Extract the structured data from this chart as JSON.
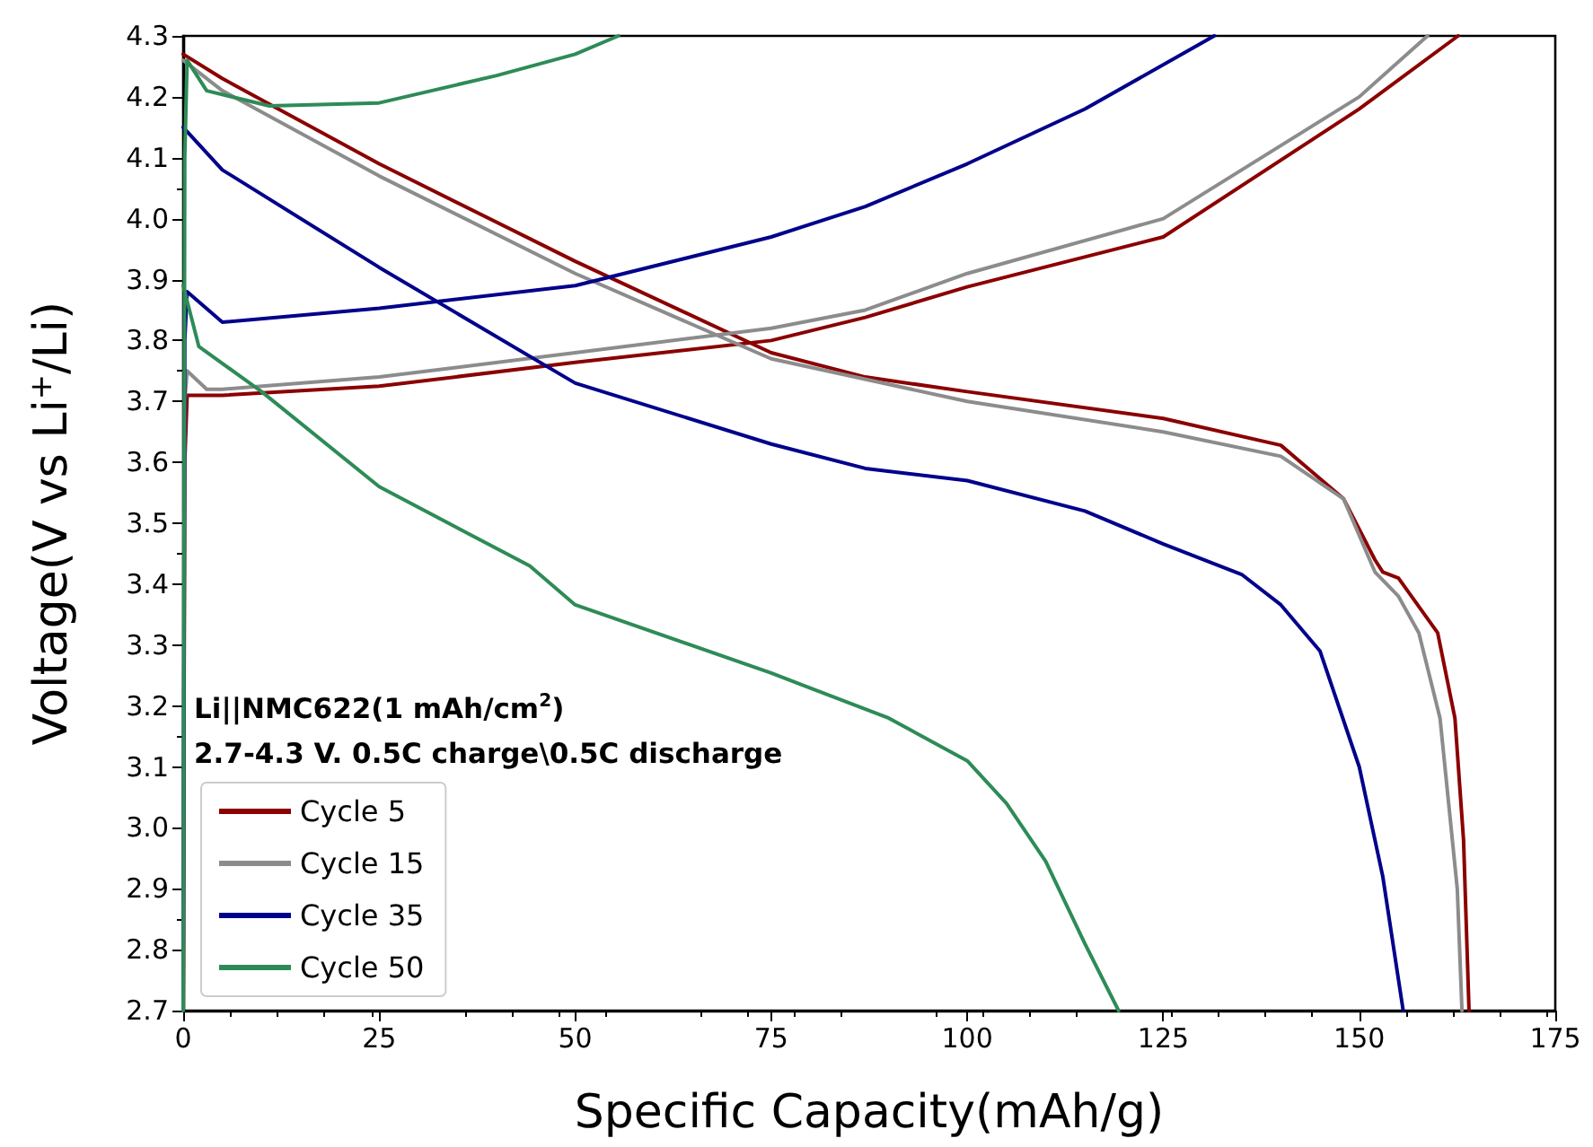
{
  "chart_data": {
    "type": "line",
    "xlabel": "Specific Capacity(mAh/g)",
    "ylabel": "Voltage(V vs Li$^{+}$/Li)",
    "xlim": [
      0,
      175
    ],
    "xticks": [
      0,
      25,
      50,
      75,
      100,
      125,
      150,
      175
    ],
    "ylim": [
      2.7,
      4.3
    ],
    "yticks": [
      2.7,
      2.8,
      2.9,
      {
        "value": 3,
        "label": "3.0"
      },
      3.1,
      3.2,
      3.3,
      3.4,
      3.5,
      3.6,
      3.7,
      3.8,
      3.9,
      {
        "value": 4,
        "label": "4.0"
      },
      4.1,
      4.2,
      4.3
    ],
    "grid": false,
    "legend": "bottom left",
    "marker": "none",
    "line_style": "solid",
    "annotations": [
      "Li||NMC622(1 mAh/cm$^{2}$)",
      "2.7-4.3 V. 0.5C charge\\0.5C discharge"
    ],
    "series": [
      {
        "name": "Cycle 5",
        "color": "#8b0000",
        "x": [
          0,
          0.2,
          0.5,
          2,
          5,
          25,
          50,
          75,
          87,
          100,
          125,
          150,
          162.6
        ],
        "values": [
          2.7,
          3.6,
          3.71,
          3.71,
          3.71,
          3.725,
          3.764,
          3.8,
          3.838,
          3.888,
          3.97,
          4.18,
          4.3
        ]
      },
      {
        "color": "#8b0000",
        "x": [
          0,
          5,
          25,
          50,
          75,
          87,
          100,
          125,
          140,
          148,
          152,
          153,
          155,
          160,
          162.2,
          163.3,
          164
        ],
        "values": [
          4.27,
          4.23,
          4.09,
          3.93,
          3.78,
          3.74,
          3.716,
          3.672,
          3.628,
          3.54,
          3.44,
          3.42,
          3.41,
          3.32,
          3.18,
          2.98,
          2.7
        ]
      },
      {
        "name": "Cycle 15",
        "color": "#8c8c8c",
        "x": [
          0,
          0.2,
          0.5,
          3,
          5,
          25,
          50,
          75,
          87,
          100,
          125,
          150,
          158.7
        ],
        "values": [
          2.7,
          3.7,
          3.75,
          3.72,
          3.72,
          3.74,
          3.78,
          3.82,
          3.85,
          3.91,
          4.0,
          4.2,
          4.3
        ]
      },
      {
        "color": "#8c8c8c",
        "x": [
          0,
          5,
          25,
          50,
          75,
          100,
          125,
          140,
          148,
          152,
          155,
          157.6,
          160.3,
          162.5,
          163.1
        ],
        "values": [
          4.26,
          4.21,
          4.07,
          3.91,
          3.77,
          3.7,
          3.65,
          3.61,
          3.54,
          3.42,
          3.38,
          3.32,
          3.18,
          2.9,
          2.7
        ]
      },
      {
        "name": "Cycle 35",
        "color": "#00008b",
        "x": [
          0,
          0.2,
          0.5,
          5,
          25,
          50,
          75,
          87,
          100,
          115,
          131.5
        ],
        "values": [
          2.7,
          3.8,
          3.88,
          3.83,
          3.853,
          3.89,
          3.97,
          4.02,
          4.09,
          4.18,
          4.3
        ]
      },
      {
        "color": "#00008b",
        "x": [
          0,
          5,
          25,
          50,
          75,
          87,
          100,
          115,
          125,
          135,
          140,
          145,
          150,
          153,
          155.6
        ],
        "values": [
          4.15,
          4.08,
          3.92,
          3.73,
          3.63,
          3.59,
          3.57,
          3.52,
          3.466,
          3.416,
          3.366,
          3.29,
          3.1,
          2.92,
          2.7
        ]
      },
      {
        "name": "Cycle 50",
        "color": "#2e8b57",
        "x": [
          0,
          0.2,
          0.5,
          3,
          11,
          25,
          40,
          50,
          55.5
        ],
        "values": [
          2.7,
          4.1,
          4.26,
          4.21,
          4.185,
          4.19,
          4.235,
          4.27,
          4.3
        ]
      },
      {
        "color": "#2e8b57",
        "x": [
          0,
          2,
          10,
          25,
          44.2,
          50,
          75,
          90,
          100,
          105,
          110,
          115,
          119.3
        ],
        "values": [
          3.89,
          3.79,
          3.716,
          3.56,
          3.43,
          3.366,
          3.254,
          3.18,
          3.11,
          3.04,
          2.945,
          2.81,
          2.7
        ]
      }
    ]
  }
}
